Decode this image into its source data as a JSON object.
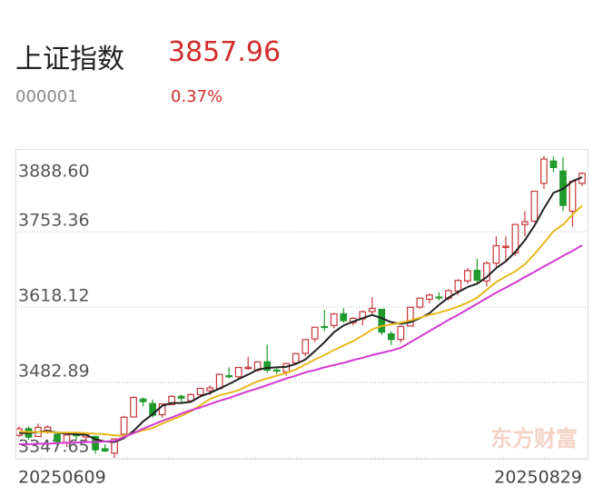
{
  "header": {
    "name": "上证指数",
    "price": 3857.96,
    "code": "000001",
    "change": "0.37%"
  },
  "chart_data": {
    "type": "candlestick",
    "categories": [
      "20250609",
      null,
      null,
      null,
      null,
      null,
      null,
      null,
      null,
      null,
      null,
      null,
      null,
      null,
      null,
      null,
      null,
      null,
      null,
      null,
      null,
      null,
      null,
      null,
      null,
      null,
      null,
      null,
      null,
      null,
      null,
      null,
      null,
      null,
      null,
      null,
      null,
      null,
      null,
      null,
      null,
      null,
      null,
      null,
      null,
      null,
      null,
      null,
      null,
      null,
      null,
      null,
      null,
      null,
      null,
      null,
      null,
      null,
      null,
      "20250829"
    ],
    "open": [
      3388,
      3400,
      3386,
      3397,
      3390,
      3375,
      3390,
      3385,
      3386,
      3364,
      3356,
      3390,
      3421,
      3453,
      3445,
      3425,
      3443,
      3458,
      3450,
      3461,
      3468,
      3472,
      3495,
      3493,
      3508,
      3505,
      3520,
      3505,
      3502,
      3518,
      3535,
      3561,
      3583,
      3585,
      3606,
      3590,
      3597,
      3610,
      3614,
      3570,
      3560,
      3584,
      3618,
      3632,
      3636,
      3634,
      3647,
      3665,
      3684,
      3665,
      3697,
      3725,
      3715,
      3766,
      3772,
      3840,
      3880,
      3862,
      3790,
      3840
    ],
    "high": [
      3404,
      3404,
      3409,
      3406,
      3395,
      3389,
      3392,
      3389,
      3387,
      3372,
      3382,
      3423,
      3458,
      3456,
      3452,
      3445,
      3460,
      3461,
      3463,
      3473,
      3478,
      3498,
      3510,
      3510,
      3529,
      3521,
      3551,
      3510,
      3518,
      3536,
      3560,
      3583,
      3613,
      3608,
      3616,
      3600,
      3612,
      3636,
      3615,
      3575,
      3584,
      3618,
      3635,
      3642,
      3645,
      3650,
      3668,
      3688,
      3705,
      3700,
      3745,
      3745,
      3767,
      3790,
      3826,
      3888.6,
      3888,
      3887,
      3845,
      3860
    ],
    "low": [
      3385,
      3380,
      3386,
      3391,
      3370,
      3367,
      3380,
      3378,
      3355,
      3358,
      3347.65,
      3389,
      3420,
      3440,
      3420,
      3420,
      3442,
      3448,
      3450,
      3458,
      3460,
      3470,
      3490,
      3490,
      3505,
      3502,
      3500,
      3498,
      3495,
      3515,
      3530,
      3555,
      3575,
      3580,
      3590,
      3585,
      3585,
      3605,
      3568,
      3550,
      3554,
      3583,
      3615,
      3625,
      3630,
      3630,
      3640,
      3660,
      3660,
      3655,
      3690,
      3702,
      3710,
      3745,
      3770,
      3830,
      3860,
      3790,
      3762,
      3835
    ],
    "close": [
      3399.8,
      3384.8,
      3402.3,
      3402.7,
      3377.0,
      3388.7,
      3387.4,
      3388.8,
      3362.1,
      3359.9,
      3381.6,
      3420.6,
      3456.0,
      3448.5,
      3424.2,
      3444.4,
      3457.8,
      3454.8,
      3461.2,
      3472.3,
      3473.1,
      3497.5,
      3493.1,
      3509.7,
      3510.2,
      3519.7,
      3505.0,
      3503.8,
      3516.8,
      3534.5,
      3559.8,
      3581.9,
      3582.3,
      3605.7,
      3593.7,
      3597.9,
      3609.7,
      3615.7,
      3573.2,
      3560.0,
      3583.3,
      3617.6,
      3634.0,
      3639.7,
      3635.1,
      3647.6,
      3665.9,
      3683.5,
      3666.4,
      3696.8,
      3728.0,
      3727.3,
      3766.2,
      3771.1,
      3825.8,
      3883.6,
      3868.4,
      3800.4,
      3843.6,
      3857.96
    ],
    "up_color": "#c8363a",
    "down_color": "#1f9a2c",
    "lines": [
      {
        "color": "#222222",
        "values": [
          3392,
          3392,
          3394,
          3396,
          3393,
          3391,
          3390,
          3389,
          3381,
          3377,
          3376,
          3383,
          3396,
          3413,
          3426,
          3441,
          3446,
          3446,
          3448,
          3458,
          3464,
          3472,
          3480,
          3489,
          3497,
          3506,
          3509,
          3510,
          3511,
          3516,
          3524,
          3539,
          3555,
          3573,
          3585,
          3592,
          3598,
          3604,
          3598,
          3591,
          3588,
          3591,
          3598,
          3607,
          3622,
          3635,
          3645,
          3654,
          3660,
          3672,
          3688,
          3700,
          3717,
          3738,
          3764,
          3795,
          3823,
          3830,
          3844,
          3851
        ]
      },
      {
        "color": "#e8b820",
        "values": [
          3395,
          3394,
          3394,
          3394,
          3393,
          3393,
          3393,
          3392,
          3391,
          3390,
          3388,
          3387,
          3392,
          3397,
          3401,
          3409,
          3416,
          3423,
          3431,
          3442,
          3453,
          3460,
          3464,
          3469,
          3477,
          3485,
          3490,
          3495,
          3500,
          3506,
          3515,
          3524,
          3532,
          3541,
          3549,
          3557,
          3567,
          3578,
          3584,
          3587,
          3590,
          3594,
          3599,
          3604,
          3608,
          3613,
          3619,
          3626,
          3635,
          3649,
          3663,
          3673,
          3682,
          3695,
          3713,
          3733,
          3754,
          3766,
          3784,
          3800
        ]
      },
      {
        "color": "#d23ad0",
        "values": [
          3372,
          3372,
          3373,
          3373,
          3374,
          3375,
          3375,
          3376,
          3376,
          3377,
          3378,
          3385,
          3392,
          3400,
          3407,
          3414,
          3420,
          3427,
          3433,
          3438,
          3444,
          3450,
          3455,
          3461,
          3467,
          3472,
          3478,
          3484,
          3490,
          3495,
          3501,
          3505,
          3510,
          3514,
          3518,
          3523,
          3527,
          3532,
          3536,
          3540,
          3545,
          3555,
          3565,
          3575,
          3585,
          3595,
          3604,
          3614,
          3624,
          3634,
          3644,
          3653,
          3662,
          3672,
          3681,
          3691,
          3700,
          3710,
          3719,
          3729
        ]
      }
    ],
    "ylim": [
      3347.65,
      3888.6
    ],
    "yticks": [
      {
        "value": 3888.6,
        "label": "3888.60"
      },
      {
        "value": 3753.36,
        "label": "3753.36"
      },
      {
        "value": 3618.12,
        "label": "3618.12"
      },
      {
        "value": 3482.89,
        "label": "3482.89"
      },
      {
        "value": 3347.65,
        "label": "3347.65"
      }
    ],
    "grid": true,
    "watermark": "东方财富"
  }
}
